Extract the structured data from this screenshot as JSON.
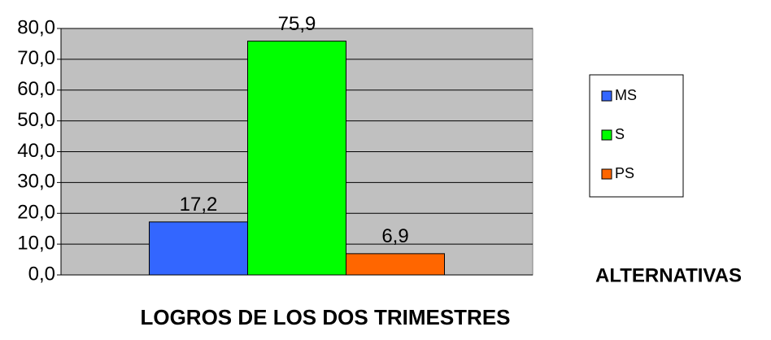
{
  "chart_data": {
    "type": "bar",
    "x_label": "LOGROS DE LOS DOS TRIMESTRES",
    "legend_title": "ALTERNATIVAS",
    "categories": [
      null
    ],
    "series": [
      {
        "name": "MS",
        "color": "#3366ff",
        "values": [
          17.2
        ],
        "value_labels": [
          "17,2"
        ]
      },
      {
        "name": "S",
        "color": "#00ff00",
        "values": [
          75.9
        ],
        "value_labels": [
          "75,9"
        ]
      },
      {
        "name": "PS",
        "color": "#ff6600",
        "values": [
          6.9
        ],
        "value_labels": [
          "6,9"
        ]
      }
    ],
    "ylim": [
      0,
      80
    ],
    "yticks": [
      {
        "value": 0,
        "label": "0,0"
      },
      {
        "value": 10,
        "label": "10,0"
      },
      {
        "value": 20,
        "label": "20,0"
      },
      {
        "value": 30,
        "label": "30,0"
      },
      {
        "value": 40,
        "label": "40,0"
      },
      {
        "value": 50,
        "label": "50,0"
      },
      {
        "value": 60,
        "label": "60,0"
      },
      {
        "value": 70,
        "label": "70,0"
      },
      {
        "value": 80,
        "label": "80,0"
      }
    ],
    "grid": true,
    "plot_background": "#c0c0c0",
    "legend": "right"
  }
}
